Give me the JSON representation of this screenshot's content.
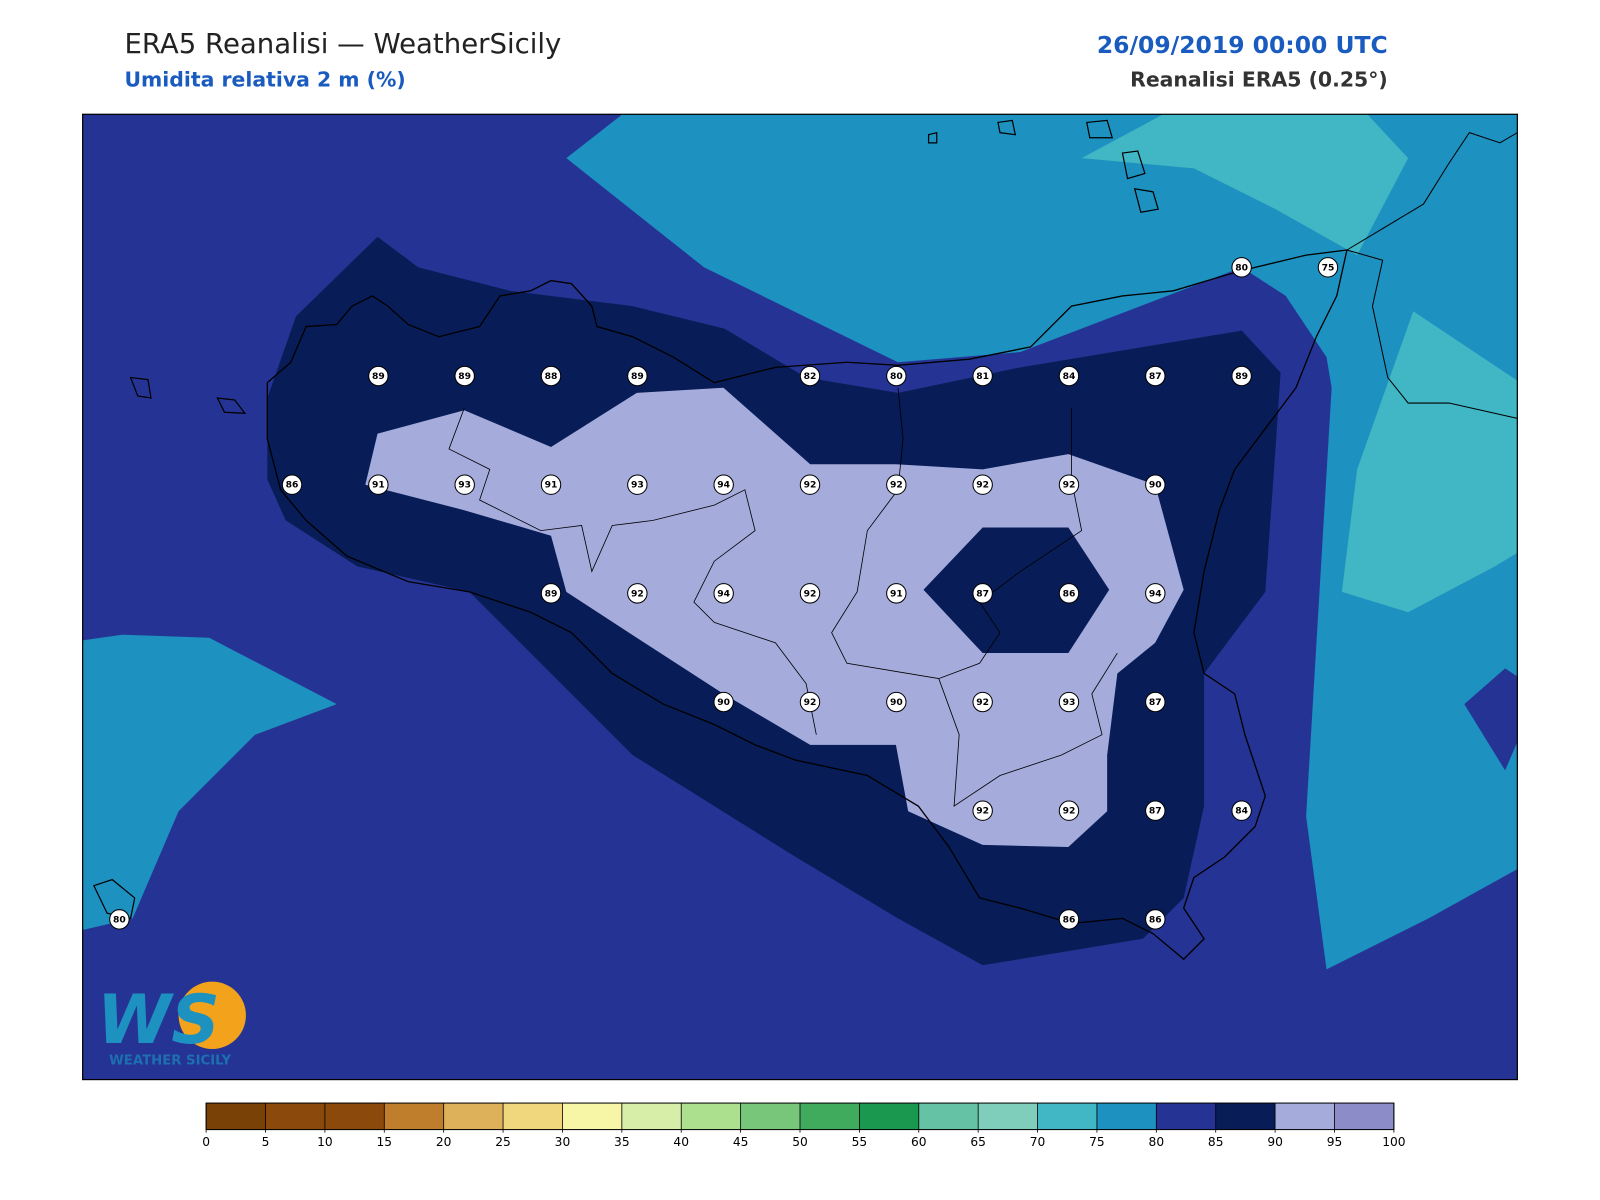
{
  "header": {
    "title": "ERA5 Reanalisi — WeatherSicily",
    "subtitle": "Umidita relativa 2 m (%)",
    "date": "26/09/2019 00:00 UTC",
    "source": "Reanalisi ERA5 (0.25°)"
  },
  "map": {
    "station_values": [
      80,
      75,
      89,
      89,
      88,
      89,
      82,
      80,
      81,
      84,
      87,
      89,
      86,
      91,
      93,
      91,
      93,
      94,
      92,
      92,
      92,
      92,
      90,
      89,
      92,
      94,
      92,
      91,
      87,
      86,
      94,
      90,
      92,
      90,
      92,
      93,
      87,
      92,
      92,
      87,
      84,
      80,
      86,
      86
    ]
  },
  "logo": {
    "mark": "WS",
    "name": "WEATHER SICILY"
  },
  "colorbar": {
    "ticks": [
      0,
      5,
      10,
      15,
      20,
      25,
      30,
      35,
      40,
      45,
      50,
      55,
      60,
      65,
      70,
      75,
      80,
      85,
      90,
      95,
      100
    ],
    "colors": [
      "#7a4107",
      "#8b4a0b",
      "#8b4a0b",
      "#bf7e2c",
      "#ddb05a",
      "#f0d67c",
      "#f7f5a6",
      "#d7eea8",
      "#ade08e",
      "#78c679",
      "#41ab5d",
      "#1a9850",
      "#66c2a4",
      "#7fcdbb",
      "#41b6c4",
      "#1d91c0",
      "#253494",
      "#081d58",
      "#a5acdc",
      "#8c8cc8"
    ]
  }
}
